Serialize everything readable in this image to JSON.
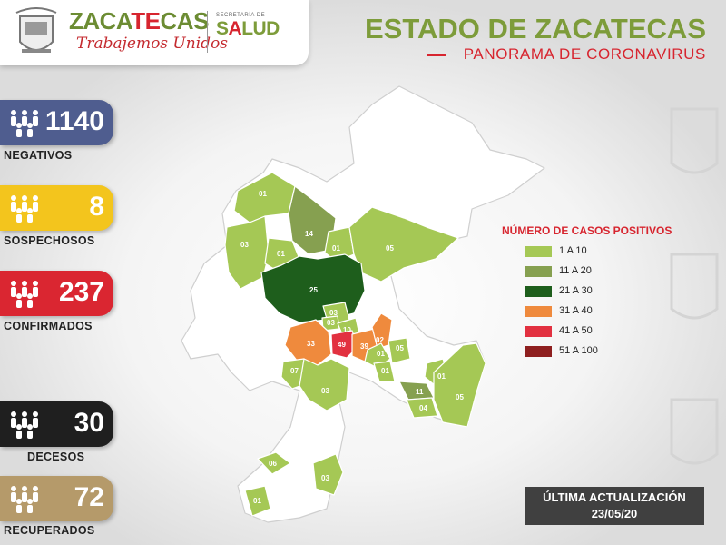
{
  "header": {
    "brand_prefix": "ZACA",
    "brand_accent": "TE",
    "brand_suffix": "CAS",
    "tagline": "Trabajemos Unidos",
    "secretaria": "SECRETARÍA DE",
    "salud_prefix": "S",
    "salud_accent": "A",
    "salud_suffix": "LUD",
    "title": "ESTADO DE ZACATECAS",
    "subtitle": "PANORAMA DE CORONAVIRUS"
  },
  "stats": [
    {
      "value": "1140",
      "label": "NEGATIVOS",
      "color": "#4f5d8f"
    },
    {
      "value": "8",
      "label": "SOSPECHOSOS",
      "color": "#f3c51d"
    },
    {
      "value": "237",
      "label": "CONFIRMADOS",
      "color": "#da2631"
    },
    {
      "value": "30",
      "label": "DECESOS",
      "color": "#1f1f1f"
    },
    {
      "value": "72",
      "label": "RECUPERADOS",
      "color": "#b59a6a"
    }
  ],
  "legend": {
    "title": "NÚMERO DE CASOS POSITIVOS",
    "items": [
      {
        "label": "1 A 10",
        "color": "#a5c855"
      },
      {
        "label": "11 A 20",
        "color": "#86a050"
      },
      {
        "label": "21 A 30",
        "color": "#1e5e1c"
      },
      {
        "label": "31 A 40",
        "color": "#ef8a3d"
      },
      {
        "label": "41 A 50",
        "color": "#e23140"
      },
      {
        "label": "51 A 100",
        "color": "#8e1f1f"
      }
    ]
  },
  "map_labels": [
    "01",
    "03",
    "14",
    "01",
    "01",
    "05",
    "25",
    "03",
    "03",
    "10",
    "33",
    "49",
    "39",
    "02",
    "01",
    "05",
    "07",
    "01",
    "03",
    "01",
    "11",
    "04",
    "05",
    "06",
    "03",
    "01"
  ],
  "update": {
    "line1": "ÚLTIMA ACTUALIZACIÓN",
    "line2": "23/05/20"
  }
}
